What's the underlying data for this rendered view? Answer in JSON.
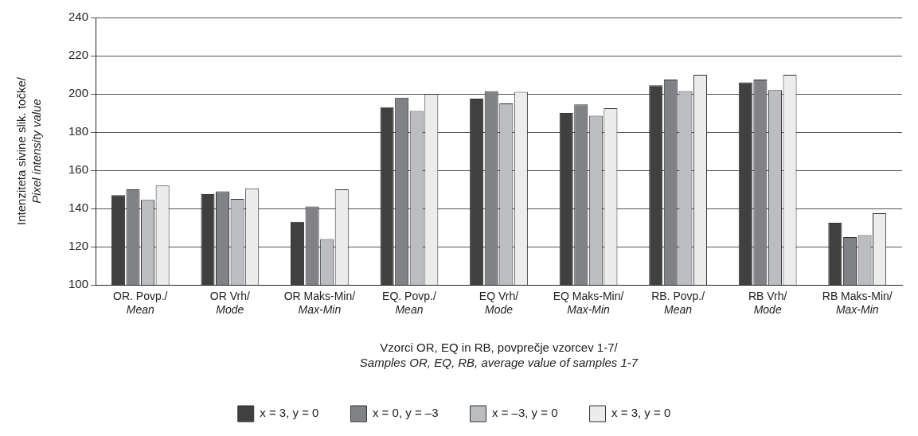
{
  "chart_data": {
    "type": "bar",
    "xlabel": "Vzorci OR, EQ in RB, povprečje vzorcev 1-7/\nSamples OR, EQ, RB, average value of samples 1-7",
    "ylabel": "Intenziteta sivine slik. točke/\nPixel intensity value",
    "categories": [
      "OR. Povp./\nMean",
      "OR Vrh/\nMode",
      "OR Maks-Min/\nMax-Min",
      "EQ. Povp./\nMean",
      "EQ Vrh/\nMode",
      "EQ Maks-Min/\nMax-Min",
      "RB. Povp./\nMean",
      "RB Vrh/\nMode",
      "RB Maks-Min/\nMax-Min"
    ],
    "series": [
      {
        "name": "x = 3, y = 0",
        "color": "#404040",
        "values": [
          147,
          147.5,
          133,
          193,
          197.5,
          190,
          204.5,
          206,
          132.5
        ]
      },
      {
        "name": "x = 0, y = –3",
        "color": "#808285",
        "values": [
          150,
          149,
          141,
          198,
          201.5,
          194.5,
          207.5,
          207.5,
          125
        ]
      },
      {
        "name": "x = –3, y = 0",
        "color": "#bcbdc1",
        "values": [
          144.5,
          145,
          124,
          191,
          195,
          188.5,
          201.5,
          202,
          126
        ]
      },
      {
        "name": "x = 3, y = 0",
        "color": "#ebeceb",
        "values": [
          152,
          150.5,
          150,
          200,
          201,
          192.5,
          210,
          210,
          137.5
        ]
      }
    ],
    "ylim": [
      100,
      240
    ],
    "yticks": [
      100,
      120,
      140,
      160,
      180,
      200,
      220,
      240
    ],
    "grid": "y",
    "legend": "bottom"
  }
}
